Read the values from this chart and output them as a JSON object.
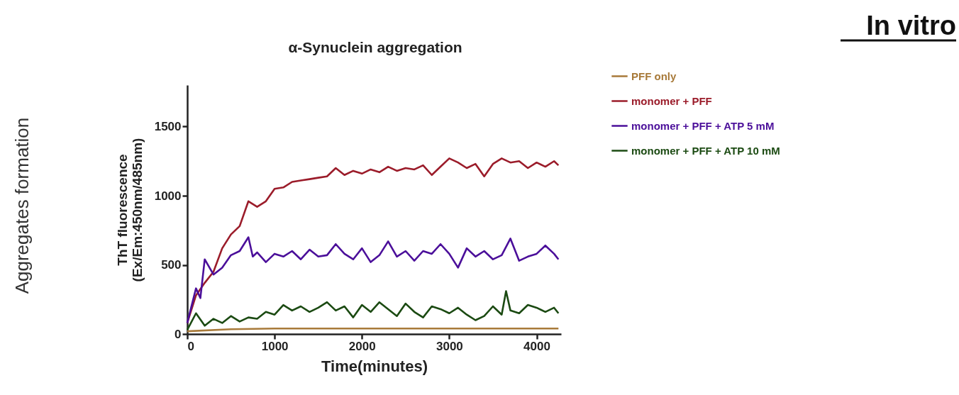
{
  "chart_data": {
    "type": "line",
    "title": "α-Synuclein aggregation",
    "xlabel": "Time(minutes)",
    "ylabel": "ThT fluorescence\n(Ex/Em:450nm/485nm)",
    "xlim": [
      0,
      4280
    ],
    "ylim": [
      0,
      1800
    ],
    "xticks": [
      0,
      1000,
      2000,
      3000,
      4000
    ],
    "yticks": [
      0,
      500,
      1000,
      1500
    ],
    "grid": false,
    "legend": "top right",
    "marker": "none",
    "line_style": "solid",
    "annotations": [
      "Aggregates formation",
      "In vitro"
    ],
    "series": [
      {
        "name": "PFF only",
        "color": "#a87a3a",
        "x": [
          0,
          500,
          1000,
          2000,
          3000,
          4250
        ],
        "values": [
          20,
          35,
          40,
          40,
          40,
          40
        ]
      },
      {
        "name": "monomer + PFF",
        "color": "#9b1c2a",
        "x": [
          0,
          100,
          200,
          300,
          400,
          500,
          600,
          700,
          800,
          900,
          1000,
          1100,
          1200,
          1300,
          1400,
          1500,
          1600,
          1700,
          1800,
          1900,
          2000,
          2100,
          2200,
          2300,
          2400,
          2500,
          2600,
          2700,
          2800,
          2900,
          3000,
          3100,
          3200,
          3300,
          3400,
          3500,
          3600,
          3700,
          3800,
          3900,
          4000,
          4100,
          4200,
          4250
        ],
        "values": [
          80,
          280,
          370,
          450,
          620,
          720,
          780,
          960,
          920,
          960,
          1050,
          1060,
          1100,
          1110,
          1120,
          1130,
          1140,
          1200,
          1150,
          1180,
          1160,
          1190,
          1170,
          1210,
          1180,
          1200,
          1190,
          1220,
          1150,
          1210,
          1270,
          1240,
          1200,
          1230,
          1140,
          1230,
          1270,
          1240,
          1250,
          1200,
          1240,
          1210,
          1250,
          1220
        ]
      },
      {
        "name": "monomer + PFF + ATP 5 mM",
        "color": "#4b0f9a",
        "x": [
          0,
          100,
          150,
          200,
          300,
          400,
          500,
          600,
          700,
          750,
          800,
          900,
          1000,
          1100,
          1200,
          1300,
          1400,
          1500,
          1600,
          1700,
          1800,
          1900,
          2000,
          2100,
          2200,
          2300,
          2400,
          2500,
          2600,
          2700,
          2800,
          2900,
          3000,
          3100,
          3200,
          3300,
          3400,
          3500,
          3600,
          3700,
          3800,
          3900,
          4000,
          4100,
          4200,
          4250
        ],
        "values": [
          80,
          330,
          260,
          540,
          430,
          480,
          570,
          600,
          700,
          560,
          590,
          520,
          580,
          560,
          600,
          540,
          610,
          560,
          570,
          650,
          580,
          540,
          620,
          520,
          570,
          670,
          560,
          600,
          530,
          600,
          580,
          650,
          580,
          480,
          620,
          560,
          600,
          540,
          570,
          690,
          530,
          560,
          580,
          640,
          580,
          540
        ]
      },
      {
        "name": "monomer + PFF + ATP 10 mM",
        "color": "#1b4a12",
        "x": [
          0,
          100,
          200,
          300,
          400,
          500,
          600,
          700,
          800,
          900,
          1000,
          1100,
          1200,
          1300,
          1400,
          1500,
          1600,
          1700,
          1800,
          1900,
          2000,
          2100,
          2200,
          2300,
          2400,
          2500,
          2600,
          2700,
          2800,
          2900,
          3000,
          3100,
          3200,
          3300,
          3400,
          3500,
          3600,
          3650,
          3700,
          3800,
          3900,
          4000,
          4100,
          4200,
          4250
        ],
        "values": [
          30,
          150,
          60,
          110,
          80,
          130,
          90,
          120,
          110,
          160,
          140,
          210,
          170,
          200,
          160,
          190,
          230,
          170,
          200,
          120,
          210,
          160,
          230,
          180,
          130,
          220,
          160,
          120,
          200,
          180,
          150,
          190,
          140,
          100,
          130,
          200,
          140,
          310,
          170,
          150,
          210,
          190,
          160,
          190,
          150
        ]
      }
    ]
  }
}
